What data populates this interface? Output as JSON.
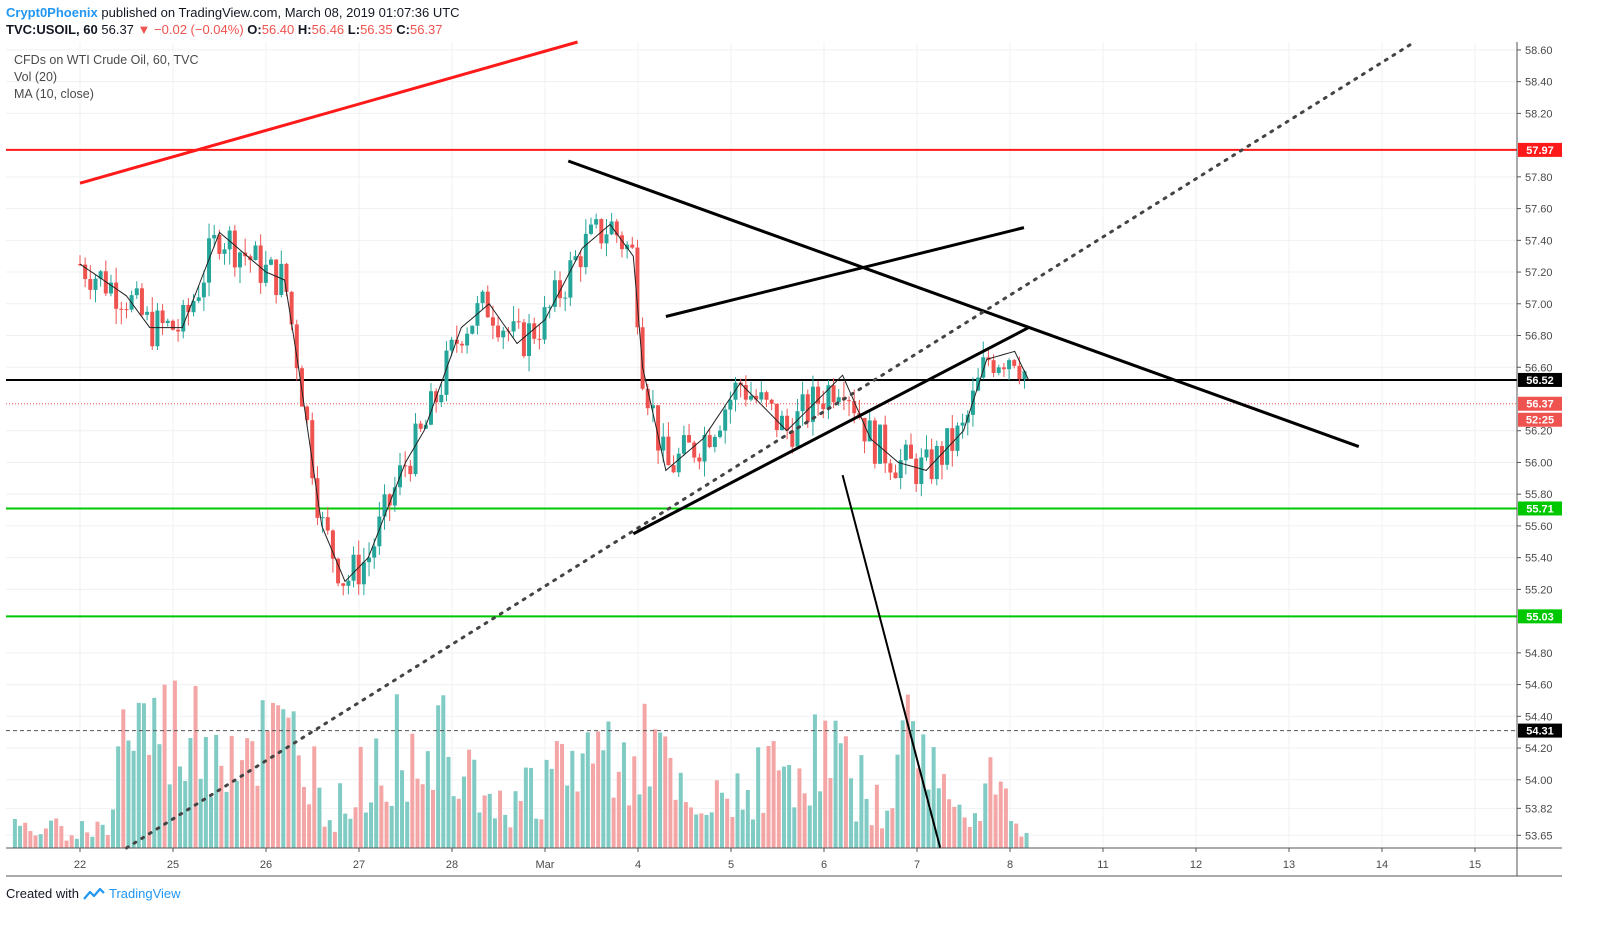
{
  "header": {
    "author": "Crypt0Phoenix",
    "published_text": "published on TradingView.com, March 08, 2019 01:07:36 UTC"
  },
  "ohlc": {
    "symbol": "TVC:USOIL, 60",
    "last": "56.37",
    "change": "▼ −0.02 (−0.04%)",
    "o_label": "O:",
    "o_value": "56.40",
    "h_label": "H:",
    "h_value": "56.46",
    "l_label": "L:",
    "l_value": "56.35",
    "c_label": "C:",
    "c_value": "56.37"
  },
  "legend": {
    "title": "CFDs on WTI Crude Oil, 60, TVC",
    "volume": "Vol (20)",
    "ma": "MA (10, close)"
  },
  "footer": {
    "created_with": "Created with",
    "brand": "TradingView"
  },
  "colors": {
    "up": "#26a69a",
    "down": "#ef5350",
    "vol_up": "#80cbc4",
    "vol_down": "#f4a6a6",
    "support": "#00e600",
    "resistance": "#ff1a1a",
    "trendline": "#000000",
    "ma": "#222222"
  },
  "chart_data": {
    "type": "candlestick",
    "symbol": "TVC:USOIL",
    "interval": "60",
    "x_ticks": [
      "22",
      "25",
      "26",
      "27",
      "28",
      "Mar",
      "4",
      "5",
      "6",
      "7",
      "8",
      "11",
      "12",
      "13",
      "14",
      "15"
    ],
    "y_ticks": [
      "58.60",
      "58.40",
      "58.20",
      "57.80",
      "57.60",
      "57.40",
      "57.20",
      "57.00",
      "56.80",
      "56.60",
      "56.20",
      "56.00",
      "55.80",
      "55.60",
      "55.40",
      "55.20",
      "54.80",
      "54.60",
      "54.40",
      "54.20",
      "54.00",
      "53.82",
      "53.65"
    ],
    "ylim": [
      53.57,
      58.65
    ],
    "grid": true,
    "price_levels": [
      {
        "label": "57.97",
        "value": 57.97,
        "color": "#ff1a1a",
        "style": "solid"
      },
      {
        "label": "56.52",
        "value": 56.52,
        "color": "#000000",
        "style": "solid"
      },
      {
        "label": "56.37",
        "value": 56.37,
        "color": "#ef5350",
        "style": "dotted"
      },
      {
        "label": "55.71",
        "value": 55.71,
        "color": "#00c800",
        "style": "solid"
      },
      {
        "label": "55.03",
        "value": 55.03,
        "color": "#00c800",
        "style": "solid"
      },
      {
        "label": "54.31",
        "value": 54.31,
        "color": "#555555",
        "style": "dashed"
      }
    ],
    "countdown": "52:25",
    "trendlines": [
      {
        "name": "red rising channel",
        "x": [
          0.0,
          5.35
        ],
        "y": [
          57.76,
          58.65
        ],
        "color": "#ff1a1a",
        "style": "solid"
      },
      {
        "name": "descending resistance",
        "x": [
          5.25,
          13.75
        ],
        "y": [
          57.9,
          56.1
        ],
        "color": "#000000",
        "style": "solid"
      },
      {
        "name": "rising wedge top",
        "x": [
          6.3,
          10.15
        ],
        "y": [
          56.92,
          57.48
        ],
        "color": "#000000",
        "style": "solid"
      },
      {
        "name": "rising wedge bottom",
        "x": [
          5.95,
          10.2
        ],
        "y": [
          55.55,
          56.85
        ],
        "color": "#000000",
        "style": "solid"
      },
      {
        "name": "projection down",
        "x": [
          8.2,
          9.25
        ],
        "y": [
          55.92,
          53.57
        ],
        "color": "#000000",
        "style": "solid"
      },
      {
        "name": "long dotted uptrend",
        "x": [
          0.5,
          14.35
        ],
        "y": [
          53.57,
          58.65
        ],
        "color": "#444444",
        "style": "dotted"
      }
    ],
    "ma_key_points": {
      "x": [
        0.0,
        0.5,
        0.75,
        1.1,
        1.5,
        2.0,
        2.2,
        2.35,
        2.6,
        2.85,
        3.1,
        3.5,
        3.7,
        4.1,
        4.4,
        4.7,
        5.0,
        5.4,
        5.7,
        5.95,
        6.05,
        6.3,
        6.7,
        7.1,
        7.6,
        8.2,
        8.5,
        8.8,
        9.1,
        9.5,
        9.75,
        10.05,
        10.2
      ],
      "y": [
        57.25,
        57.05,
        56.85,
        56.85,
        57.45,
        57.2,
        57.15,
        56.6,
        55.6,
        55.25,
        55.4,
        56.0,
        56.2,
        56.85,
        57.0,
        56.75,
        56.9,
        57.35,
        57.5,
        57.3,
        56.6,
        55.95,
        56.15,
        56.5,
        56.2,
        56.55,
        56.15,
        56.0,
        55.95,
        56.2,
        56.65,
        56.7,
        56.52
      ]
    },
    "volume_key_points": {
      "x": [
        0.3,
        0.45,
        2.4,
        2.7,
        3.3,
        4.1,
        4.5,
        5.2,
        6.1,
        6.6,
        7.2,
        7.5,
        8.1,
        8.6,
        9.0,
        9.4,
        9.85,
        10.1
      ],
      "rel": [
        0.15,
        0.95,
        0.8,
        0.25,
        0.75,
        1.0,
        0.3,
        0.65,
        0.85,
        0.2,
        0.55,
        0.6,
        0.75,
        0.3,
        1.0,
        0.25,
        0.6,
        0.15
      ]
    }
  }
}
